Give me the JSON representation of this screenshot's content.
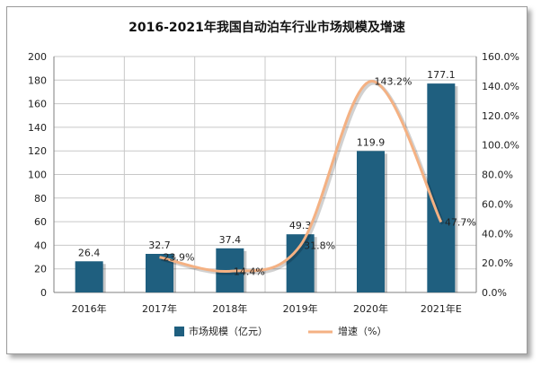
{
  "chart_data": {
    "type": "bar",
    "title": "2016-2021年我国自动泊车行业市场规模及增速",
    "categories": [
      "2016年",
      "2017年",
      "2018年",
      "2019年",
      "2020年",
      "2021年E"
    ],
    "series": [
      {
        "name": "市场规模（亿元）",
        "type": "bar",
        "axis": "left",
        "values": [
          26.4,
          32.7,
          37.4,
          49.3,
          119.9,
          177.1
        ],
        "labels": [
          "26.4",
          "32.7",
          "37.4",
          "49.3",
          "119.9",
          "177.1"
        ]
      },
      {
        "name": "增速（%）",
        "type": "line",
        "axis": "right",
        "values": [
          null,
          23.9,
          14.4,
          31.8,
          143.2,
          47.7
        ],
        "labels": [
          "",
          "23.9%",
          "14.4%",
          "31.8%",
          "143.2%",
          "47.7%"
        ]
      }
    ],
    "y_left": {
      "min": 0,
      "max": 200,
      "step": 20,
      "ticks": [
        "0",
        "20",
        "40",
        "60",
        "80",
        "100",
        "120",
        "140",
        "160",
        "180",
        "200"
      ]
    },
    "y_right": {
      "min": 0,
      "max": 160,
      "step": 20,
      "ticks": [
        "0.0%",
        "20.0%",
        "40.0%",
        "60.0%",
        "80.0%",
        "100.0%",
        "120.0%",
        "140.0%",
        "160.0%"
      ]
    },
    "grid": true,
    "legend_position": "bottom",
    "colors": {
      "bar": "#1f5f7f",
      "line": "#f4b183",
      "grid": "#c8c8c8",
      "text": "#222222"
    }
  }
}
